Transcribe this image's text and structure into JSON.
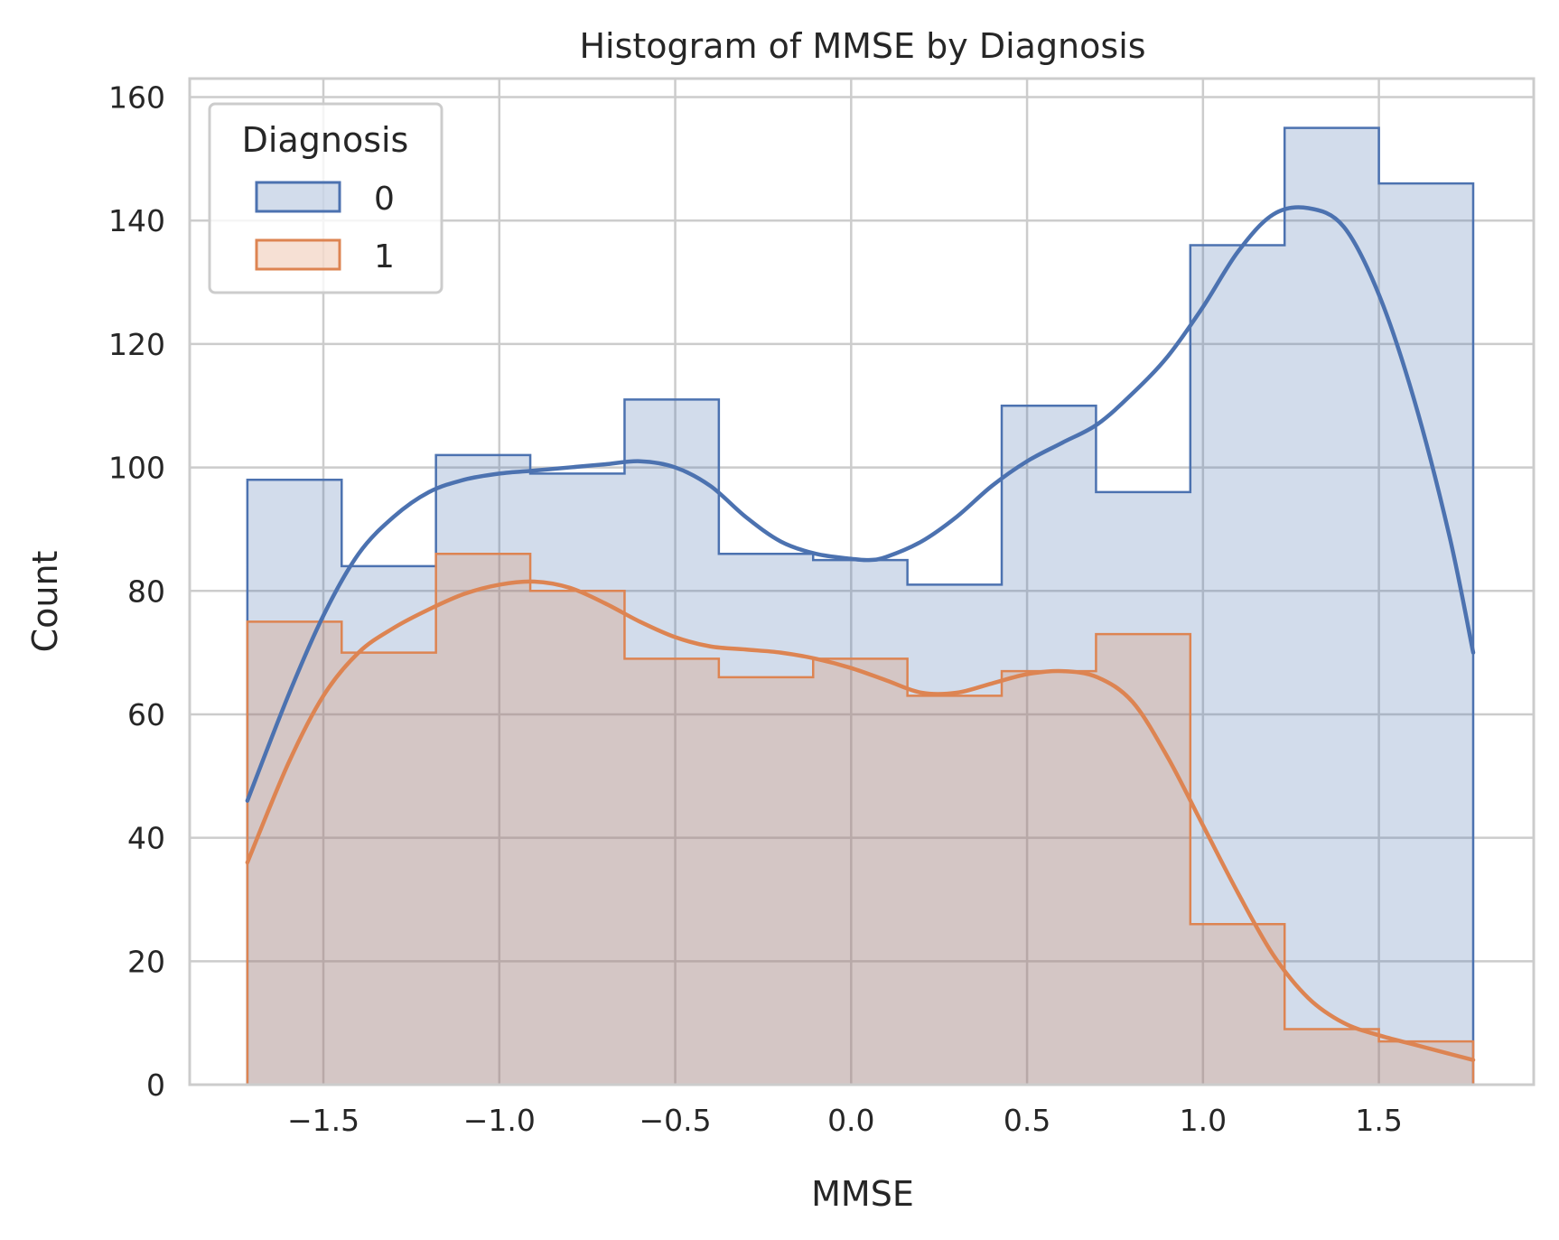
{
  "chart_data": {
    "type": "histogram",
    "title": "Histogram of MMSE by Diagnosis",
    "xlabel": "MMSE",
    "ylabel": "Count",
    "xlim": [
      -1.88,
      1.94
    ],
    "ylim": [
      0,
      163
    ],
    "x_ticks": [
      -1.5,
      -1.0,
      -0.5,
      0.0,
      0.5,
      1.0,
      1.5
    ],
    "x_tick_labels": [
      "−1.5",
      "−1.0",
      "−0.5",
      "0.0",
      "0.5",
      "1.0",
      "1.5"
    ],
    "y_ticks": [
      0,
      20,
      40,
      60,
      80,
      100,
      120,
      140,
      160
    ],
    "y_tick_labels": [
      "0",
      "20",
      "40",
      "60",
      "80",
      "100",
      "120",
      "140",
      "160"
    ],
    "grid": true,
    "bin_edges": [
      -1.716,
      -1.448,
      -1.18,
      -0.912,
      -0.644,
      -0.376,
      -0.108,
      0.16,
      0.428,
      0.696,
      0.964,
      1.232,
      1.5,
      1.768
    ],
    "legend": {
      "title": "Diagnosis",
      "placement": "top-left"
    },
    "series": [
      {
        "name": "0",
        "color": "#4c72b0",
        "fill": "rgba(76,114,176,0.25)",
        "counts": [
          98,
          84,
          102,
          99,
          111,
          86,
          85,
          81,
          110,
          96,
          136,
          155,
          146
        ],
        "kde": {
          "x": [
            -1.716,
            -1.6,
            -1.5,
            -1.4,
            -1.3,
            -1.2,
            -1.1,
            -1.0,
            -0.9,
            -0.8,
            -0.7,
            -0.6,
            -0.5,
            -0.4,
            -0.3,
            -0.2,
            -0.1,
            0.0,
            0.05,
            0.1,
            0.2,
            0.3,
            0.4,
            0.5,
            0.6,
            0.7,
            0.8,
            0.9,
            1.0,
            1.1,
            1.2,
            1.3,
            1.4,
            1.5,
            1.6,
            1.7,
            1.768
          ],
          "y": [
            46,
            63,
            76,
            86,
            92,
            96,
            98,
            99,
            99.5,
            100,
            100.5,
            101,
            100,
            97,
            92,
            88,
            86,
            85.2,
            85,
            85.5,
            88,
            92,
            97,
            101,
            104,
            107,
            112,
            118,
            126,
            135,
            141,
            142,
            139,
            128,
            111,
            89,
            70
          ]
        }
      },
      {
        "name": "1",
        "color": "#dd8452",
        "fill": "rgba(221,132,82,0.25)",
        "counts": [
          75,
          70,
          86,
          80,
          69,
          66,
          69,
          63,
          67,
          73,
          26,
          9,
          7
        ],
        "kde": {
          "x": [
            -1.716,
            -1.6,
            -1.5,
            -1.4,
            -1.3,
            -1.2,
            -1.1,
            -1.0,
            -0.9,
            -0.8,
            -0.7,
            -0.6,
            -0.5,
            -0.4,
            -0.3,
            -0.2,
            -0.1,
            0.0,
            0.1,
            0.2,
            0.3,
            0.4,
            0.5,
            0.6,
            0.7,
            0.8,
            0.9,
            1.0,
            1.1,
            1.2,
            1.3,
            1.4,
            1.5,
            1.6,
            1.7,
            1.768
          ],
          "y": [
            36,
            52,
            63,
            70,
            74,
            77,
            79.5,
            81,
            81.5,
            80.5,
            78,
            75,
            72.5,
            71,
            70.5,
            70,
            69,
            67.5,
            65.5,
            63.5,
            63.5,
            65,
            66.5,
            67,
            66,
            62,
            53,
            42,
            31,
            21,
            14,
            10,
            8,
            6.5,
            5,
            4
          ]
        }
      }
    ]
  }
}
